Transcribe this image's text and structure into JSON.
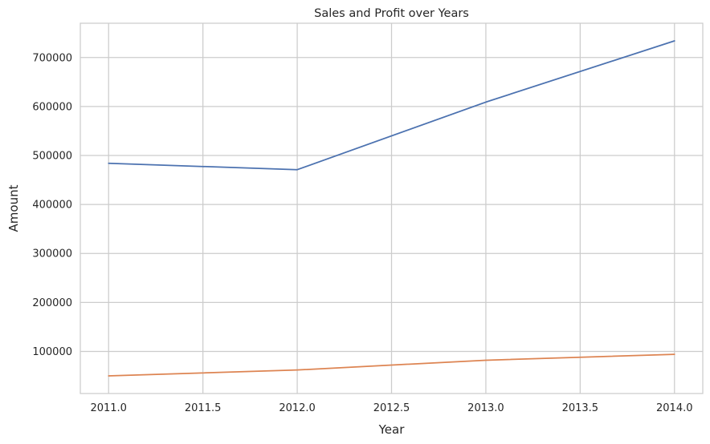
{
  "chart_data": {
    "type": "line",
    "title": "Sales and Profit over Years",
    "xlabel": "Year",
    "ylabel": "Amount",
    "x": [
      2011,
      2012,
      2013,
      2014
    ],
    "xlim": [
      2010.85,
      2014.15
    ],
    "ylim": [
      14000,
      770000
    ],
    "xticks": [
      2011.0,
      2011.5,
      2012.0,
      2012.5,
      2013.0,
      2013.5,
      2014.0
    ],
    "xtick_labels": [
      "2011.0",
      "2011.5",
      "2012.0",
      "2012.5",
      "2013.0",
      "2013.5",
      "2014.0"
    ],
    "yticks": [
      100000,
      200000,
      300000,
      400000,
      500000,
      600000,
      700000
    ],
    "ytick_labels": [
      "100000",
      "200000",
      "300000",
      "400000",
      "500000",
      "600000",
      "700000"
    ],
    "grid": true,
    "series": [
      {
        "values": [
          484000,
          471000,
          609000,
          734000
        ],
        "color": "#4c72b0"
      },
      {
        "values": [
          50000,
          62000,
          82000,
          94000
        ],
        "color": "#dd8452"
      }
    ]
  }
}
